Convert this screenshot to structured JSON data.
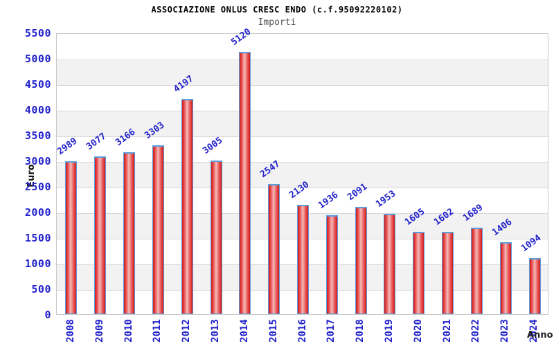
{
  "header": {
    "title": "ASSOCIAZIONE ONLUS CRESC ENDO (c.f.95092220102)",
    "subtitle": "Importi"
  },
  "chart_data": {
    "type": "bar",
    "title": "ASSOCIAZIONE ONLUS CRESC ENDO (c.f.95092220102)",
    "subtitle": "Importi",
    "xlabel": "Anno",
    "ylabel": "Euro",
    "categories": [
      "2008",
      "2009",
      "2010",
      "2011",
      "2012",
      "2013",
      "2014",
      "2015",
      "2016",
      "2017",
      "2018",
      "2019",
      "2020",
      "2021",
      "2022",
      "2023",
      "2024"
    ],
    "values": [
      2989,
      3077,
      3166,
      3303,
      4197,
      3005,
      5120,
      2547,
      2130,
      1936,
      2091,
      1953,
      1605,
      1602,
      1689,
      1406,
      1094
    ],
    "ylim": [
      0,
      5500
    ],
    "ytick_step": 500,
    "grid": true,
    "legend": "none",
    "bar_label_rotation_deg": -36,
    "xtick_rotation_deg": -90,
    "colors": {
      "accent_blue": "#2222cc",
      "bar_edge_red": "#c62222",
      "bar_mid_pink": "#f7bcbc",
      "bar_border_blue": "#5b9ddb",
      "band_gray": "#f2f2f2",
      "grid_gray": "#d9d9d9",
      "subtitle_gray": "#555555"
    }
  }
}
